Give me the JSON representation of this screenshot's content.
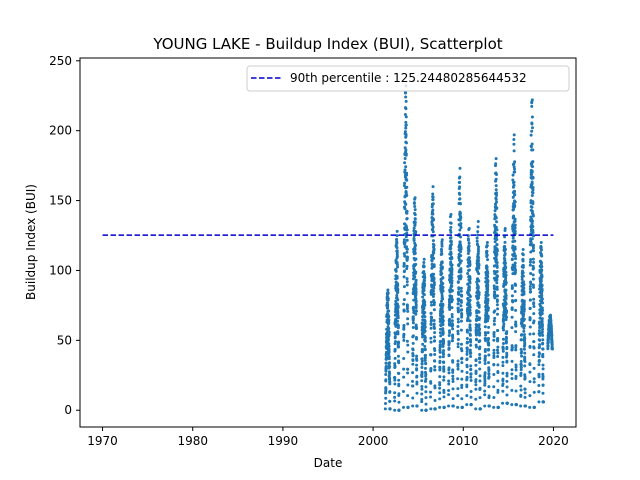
{
  "chart_data": {
    "type": "scatter",
    "title": "YOUNG LAKE - Buildup Index (BUI), Scatterplot",
    "xlabel": "Date",
    "ylabel": "Buildup Index (BUI)",
    "xlim": [
      1967.5,
      2022.5
    ],
    "ylim": [
      -12,
      252
    ],
    "xticks": [
      1970,
      1980,
      1990,
      2000,
      2010,
      2020
    ],
    "yticks": [
      0,
      50,
      100,
      150,
      200,
      250
    ],
    "grid": false,
    "legend_position": "top-right",
    "reference_line": {
      "label": "90th percentile : 125.24480285644532",
      "value": 125.24480285644532,
      "x_range": [
        1970,
        2020
      ],
      "color": "#0000cc",
      "style": "dashed"
    },
    "series": [
      {
        "name": "BUI",
        "color": "#1f77b4",
        "note": "Approximate daily BUI values per fire season; each season rises from near 0 to its peak.",
        "seasons": [
          {
            "year": 2001.6,
            "start": 1,
            "peak": 86
          },
          {
            "year": 2002.6,
            "start": 0,
            "peak": 128
          },
          {
            "year": 2003.6,
            "start": 2,
            "peak": 232
          },
          {
            "year": 2004.6,
            "start": 3,
            "peak": 152
          },
          {
            "year": 2005.6,
            "start": 0,
            "peak": 108
          },
          {
            "year": 2006.6,
            "start": 1,
            "peak": 160
          },
          {
            "year": 2007.6,
            "start": 2,
            "peak": 122
          },
          {
            "year": 2008.6,
            "start": 3,
            "peak": 140
          },
          {
            "year": 2009.6,
            "start": 2,
            "peak": 173
          },
          {
            "year": 2010.6,
            "start": 4,
            "peak": 130
          },
          {
            "year": 2011.6,
            "start": 1,
            "peak": 135
          },
          {
            "year": 2012.6,
            "start": 3,
            "peak": 120
          },
          {
            "year": 2013.6,
            "start": 2,
            "peak": 180
          },
          {
            "year": 2014.6,
            "start": 5,
            "peak": 130
          },
          {
            "year": 2015.6,
            "start": 4,
            "peak": 197
          },
          {
            "year": 2016.6,
            "start": 3,
            "peak": 115
          },
          {
            "year": 2017.6,
            "start": 2,
            "peak": 222
          },
          {
            "year": 2018.6,
            "start": 6,
            "peak": 120
          },
          {
            "year": 2019.6,
            "start": 44,
            "peak": 68
          }
        ]
      }
    ]
  }
}
